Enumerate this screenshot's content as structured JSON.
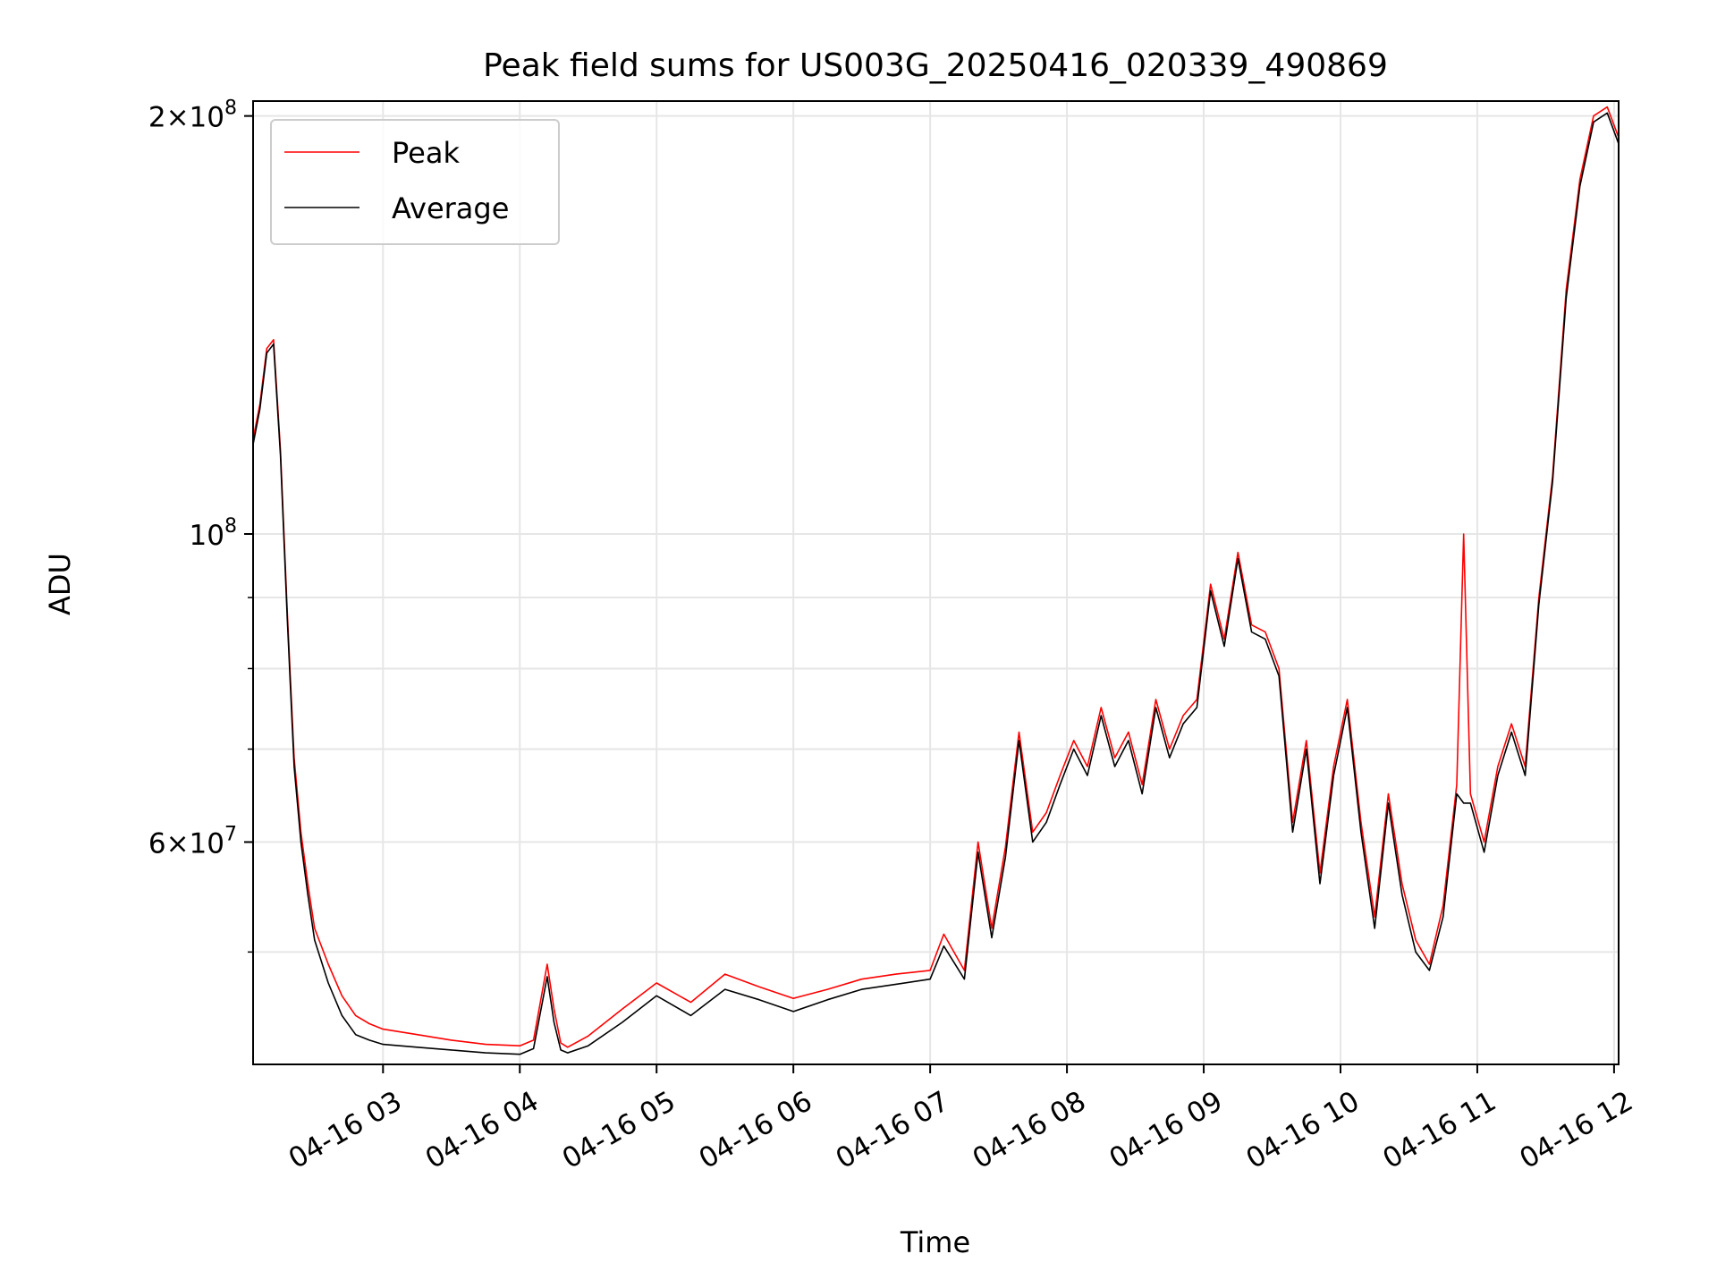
{
  "chart_data": {
    "type": "line",
    "title": "Peak field sums for US003G_20250416_020339_490869",
    "xlabel": "Time",
    "ylabel": "ADU",
    "yscale": "log",
    "ylim": [
      41500000,
      205000000
    ],
    "xlim": [
      "2025-04-16 02:03",
      "2025-04-16 12:02"
    ],
    "grid": true,
    "legend_position": "upper left",
    "x_ticks": [
      {
        "value": "2025-04-16 03:00",
        "label": "04-16 03"
      },
      {
        "value": "2025-04-16 04:00",
        "label": "04-16 04"
      },
      {
        "value": "2025-04-16 05:00",
        "label": "04-16 05"
      },
      {
        "value": "2025-04-16 06:00",
        "label": "04-16 06"
      },
      {
        "value": "2025-04-16 07:00",
        "label": "04-16 07"
      },
      {
        "value": "2025-04-16 08:00",
        "label": "04-16 08"
      },
      {
        "value": "2025-04-16 09:00",
        "label": "04-16 09"
      },
      {
        "value": "2025-04-16 10:00",
        "label": "04-16 10"
      },
      {
        "value": "2025-04-16 11:00",
        "label": "04-16 11"
      },
      {
        "value": "2025-04-16 12:00",
        "label": "04-16 12"
      }
    ],
    "y_major_ticks": [
      {
        "value": 60000000,
        "mantissa": "6",
        "exp": "7"
      },
      {
        "value": 100000000,
        "mantissa": "",
        "exp": "8"
      },
      {
        "value": 200000000,
        "mantissa": "2",
        "exp": "8"
      }
    ],
    "y_minor_ticks": [
      50000000,
      70000000,
      80000000,
      90000000
    ],
    "series": [
      {
        "name": "Peak",
        "color": "#ff0000",
        "x": [
          "2025-04-16 02:03",
          "2025-04-16 02:06",
          "2025-04-16 02:09",
          "2025-04-16 02:12",
          "2025-04-16 02:15",
          "2025-04-16 02:18",
          "2025-04-16 02:21",
          "2025-04-16 02:24",
          "2025-04-16 02:27",
          "2025-04-16 02:30",
          "2025-04-16 02:36",
          "2025-04-16 02:42",
          "2025-04-16 02:48",
          "2025-04-16 02:54",
          "2025-04-16 03:00",
          "2025-04-16 03:15",
          "2025-04-16 03:30",
          "2025-04-16 03:45",
          "2025-04-16 04:00",
          "2025-04-16 04:06",
          "2025-04-16 04:12",
          "2025-04-16 04:15",
          "2025-04-16 04:18",
          "2025-04-16 04:21",
          "2025-04-16 04:30",
          "2025-04-16 04:45",
          "2025-04-16 05:00",
          "2025-04-16 05:15",
          "2025-04-16 05:30",
          "2025-04-16 05:45",
          "2025-04-16 06:00",
          "2025-04-16 06:15",
          "2025-04-16 06:30",
          "2025-04-16 06:45",
          "2025-04-16 07:00",
          "2025-04-16 07:06",
          "2025-04-16 07:15",
          "2025-04-16 07:21",
          "2025-04-16 07:27",
          "2025-04-16 07:33",
          "2025-04-16 07:39",
          "2025-04-16 07:45",
          "2025-04-16 07:51",
          "2025-04-16 07:57",
          "2025-04-16 08:03",
          "2025-04-16 08:09",
          "2025-04-16 08:15",
          "2025-04-16 08:21",
          "2025-04-16 08:27",
          "2025-04-16 08:33",
          "2025-04-16 08:39",
          "2025-04-16 08:45",
          "2025-04-16 08:51",
          "2025-04-16 08:57",
          "2025-04-16 09:03",
          "2025-04-16 09:09",
          "2025-04-16 09:15",
          "2025-04-16 09:21",
          "2025-04-16 09:27",
          "2025-04-16 09:33",
          "2025-04-16 09:39",
          "2025-04-16 09:45",
          "2025-04-16 09:51",
          "2025-04-16 09:57",
          "2025-04-16 10:03",
          "2025-04-16 10:09",
          "2025-04-16 10:15",
          "2025-04-16 10:21",
          "2025-04-16 10:27",
          "2025-04-16 10:33",
          "2025-04-16 10:39",
          "2025-04-16 10:45",
          "2025-04-16 10:51",
          "2025-04-16 10:54",
          "2025-04-16 10:57",
          "2025-04-16 11:03",
          "2025-04-16 11:09",
          "2025-04-16 11:15",
          "2025-04-16 11:21",
          "2025-04-16 11:27",
          "2025-04-16 11:33",
          "2025-04-16 11:39",
          "2025-04-16 11:45",
          "2025-04-16 11:51",
          "2025-04-16 11:57",
          "2025-04-16 12:02"
        ],
        "values": [
          117000000,
          124000000,
          136000000,
          138000000,
          115000000,
          88000000,
          69000000,
          61000000,
          56000000,
          52000000,
          49000000,
          46500000,
          45000000,
          44400000,
          44000000,
          43600000,
          43200000,
          42900000,
          42800000,
          43200000,
          49000000,
          45500000,
          43000000,
          42700000,
          43500000,
          45500000,
          47500000,
          46000000,
          48200000,
          47200000,
          46300000,
          47000000,
          47800000,
          48200000,
          48500000,
          51500000,
          48500000,
          60000000,
          52000000,
          59500000,
          72000000,
          61000000,
          63000000,
          67000000,
          71000000,
          68000000,
          75000000,
          69000000,
          72000000,
          66000000,
          76000000,
          70000000,
          74000000,
          76000000,
          92000000,
          84000000,
          97000000,
          86000000,
          85000000,
          80000000,
          62000000,
          71000000,
          57000000,
          68000000,
          76000000,
          62000000,
          53000000,
          65000000,
          56000000,
          51000000,
          49000000,
          54000000,
          66000000,
          100000000,
          65000000,
          60000000,
          68000000,
          73000000,
          68000000,
          90000000,
          110000000,
          150000000,
          180000000,
          200000000,
          203000000,
          193000000
        ]
      },
      {
        "name": "Average",
        "color": "#000000",
        "x": [
          "2025-04-16 02:03",
          "2025-04-16 02:06",
          "2025-04-16 02:09",
          "2025-04-16 02:12",
          "2025-04-16 02:15",
          "2025-04-16 02:18",
          "2025-04-16 02:21",
          "2025-04-16 02:24",
          "2025-04-16 02:27",
          "2025-04-16 02:30",
          "2025-04-16 02:36",
          "2025-04-16 02:42",
          "2025-04-16 02:48",
          "2025-04-16 02:54",
          "2025-04-16 03:00",
          "2025-04-16 03:15",
          "2025-04-16 03:30",
          "2025-04-16 03:45",
          "2025-04-16 04:00",
          "2025-04-16 04:06",
          "2025-04-16 04:12",
          "2025-04-16 04:15",
          "2025-04-16 04:18",
          "2025-04-16 04:21",
          "2025-04-16 04:30",
          "2025-04-16 04:45",
          "2025-04-16 05:00",
          "2025-04-16 05:15",
          "2025-04-16 05:30",
          "2025-04-16 05:45",
          "2025-04-16 06:00",
          "2025-04-16 06:15",
          "2025-04-16 06:30",
          "2025-04-16 06:45",
          "2025-04-16 07:00",
          "2025-04-16 07:06",
          "2025-04-16 07:15",
          "2025-04-16 07:21",
          "2025-04-16 07:27",
          "2025-04-16 07:33",
          "2025-04-16 07:39",
          "2025-04-16 07:45",
          "2025-04-16 07:51",
          "2025-04-16 07:57",
          "2025-04-16 08:03",
          "2025-04-16 08:09",
          "2025-04-16 08:15",
          "2025-04-16 08:21",
          "2025-04-16 08:27",
          "2025-04-16 08:33",
          "2025-04-16 08:39",
          "2025-04-16 08:45",
          "2025-04-16 08:51",
          "2025-04-16 08:57",
          "2025-04-16 09:03",
          "2025-04-16 09:09",
          "2025-04-16 09:15",
          "2025-04-16 09:21",
          "2025-04-16 09:27",
          "2025-04-16 09:33",
          "2025-04-16 09:39",
          "2025-04-16 09:45",
          "2025-04-16 09:51",
          "2025-04-16 09:57",
          "2025-04-16 10:03",
          "2025-04-16 10:09",
          "2025-04-16 10:15",
          "2025-04-16 10:21",
          "2025-04-16 10:27",
          "2025-04-16 10:33",
          "2025-04-16 10:39",
          "2025-04-16 10:45",
          "2025-04-16 10:51",
          "2025-04-16 10:54",
          "2025-04-16 10:57",
          "2025-04-16 11:03",
          "2025-04-16 11:09",
          "2025-04-16 11:15",
          "2025-04-16 11:21",
          "2025-04-16 11:27",
          "2025-04-16 11:33",
          "2025-04-16 11:39",
          "2025-04-16 11:45",
          "2025-04-16 11:51",
          "2025-04-16 11:57",
          "2025-04-16 12:02"
        ],
        "values": [
          116000000,
          123000000,
          135000000,
          137000000,
          114000000,
          87000000,
          68000000,
          60000000,
          55000000,
          51000000,
          47500000,
          45000000,
          43600000,
          43200000,
          42900000,
          42700000,
          42500000,
          42300000,
          42200000,
          42600000,
          48000000,
          44500000,
          42500000,
          42300000,
          42800000,
          44500000,
          46500000,
          45000000,
          47000000,
          46200000,
          45300000,
          46200000,
          47000000,
          47400000,
          47800000,
          50500000,
          47800000,
          59000000,
          51200000,
          58500000,
          71000000,
          60000000,
          62000000,
          66000000,
          70000000,
          67000000,
          74000000,
          68000000,
          71000000,
          65000000,
          75000000,
          69000000,
          73000000,
          75000000,
          91000000,
          83000000,
          96000000,
          85000000,
          84000000,
          79000000,
          61000000,
          70000000,
          56000000,
          67000000,
          75000000,
          61000000,
          52000000,
          64000000,
          55000000,
          50000000,
          48500000,
          53000000,
          65000000,
          64000000,
          64000000,
          59000000,
          67000000,
          72000000,
          67000000,
          89000000,
          109000000,
          148000000,
          178000000,
          198000000,
          201000000,
          191000000
        ]
      }
    ]
  }
}
